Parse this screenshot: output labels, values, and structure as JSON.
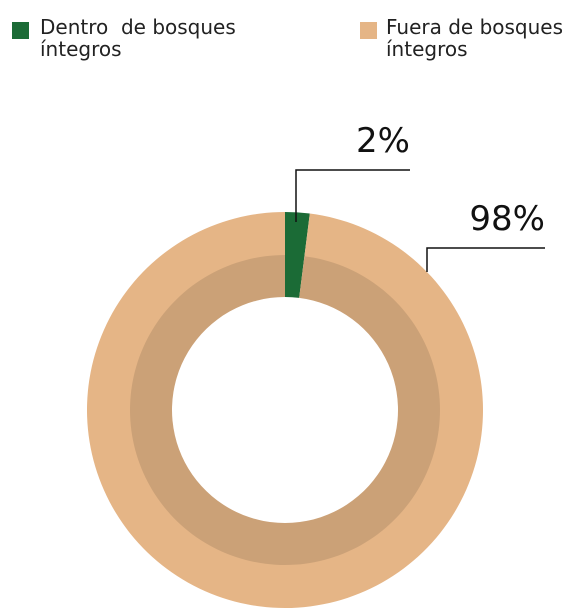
{
  "chart_data": {
    "type": "pie",
    "categories": [
      "Dentro  de bosques íntegros",
      "Fuera de bosques íntegros"
    ],
    "values": [
      2,
      98
    ],
    "value_labels": [
      "2%",
      "98%"
    ],
    "colors": [
      "#1b6b36",
      "#e5b586"
    ]
  }
}
